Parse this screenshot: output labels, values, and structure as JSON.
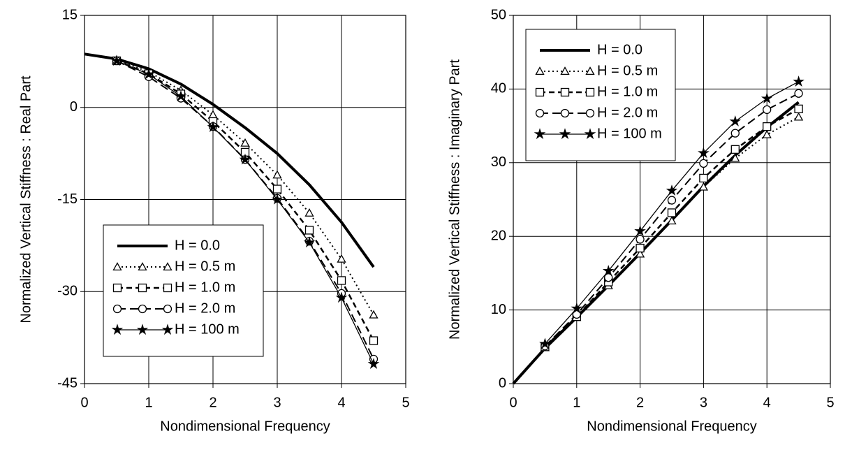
{
  "chart_data": [
    {
      "type": "line",
      "x_label": "Nondimensional Frequency",
      "y_label": "Normalized Vertical Stiffness : Real Part",
      "x": [
        0,
        0.5,
        1,
        1.5,
        2,
        2.5,
        3,
        3.5,
        4,
        4.5
      ],
      "xlim": [
        0,
        5
      ],
      "xticks": [
        0,
        1,
        2,
        3,
        4,
        5
      ],
      "ylim": [
        -45,
        15
      ],
      "yticks": [
        -45,
        -30,
        -15,
        0,
        15
      ],
      "grid": true,
      "legend": "lower left",
      "series": [
        {
          "name": "H = 0.0",
          "color": "#000000",
          "line_style": "thick",
          "marker": "none",
          "values": [
            8.7,
            7.9,
            6.3,
            3.8,
            0.5,
            -3.3,
            -7.5,
            -12.6,
            -18.7,
            -26
          ]
        },
        {
          "name": "H = 0.5 m",
          "color": "#000000",
          "line_style": "dotted",
          "marker": "triangle",
          "values": [
            null,
            7.7,
            5.8,
            2.8,
            -1.2,
            -5.8,
            -11,
            -17.2,
            -24.7,
            -33.8
          ]
        },
        {
          "name": "H = 1.0 m",
          "color": "#000000",
          "line_style": "dashed",
          "marker": "square",
          "values": [
            null,
            7.6,
            5.5,
            2.2,
            -2.3,
            -7.3,
            -13.3,
            -20,
            -28.2,
            -38
          ]
        },
        {
          "name": "H = 2.0 m",
          "color": "#000000",
          "line_style": "longdash",
          "marker": "circle",
          "values": [
            null,
            7.6,
            5.0,
            1.5,
            -3.1,
            -8.5,
            -14.8,
            -21.8,
            -30.3,
            -41
          ]
        },
        {
          "name": "H = 100 m",
          "color": "#000000",
          "line_style": "thin",
          "marker": "star",
          "values": [
            null,
            7.6,
            5.4,
            1.8,
            -3.2,
            -8.5,
            -15,
            -22,
            -31,
            -41.8
          ]
        }
      ]
    },
    {
      "type": "line",
      "x_label": "Nondimensional Frequency",
      "y_label": "Normalized Vertical Stiffness : Imaginary Part",
      "x": [
        0,
        0.5,
        1,
        1.5,
        2,
        2.5,
        3,
        3.5,
        4,
        4.5
      ],
      "xlim": [
        0,
        5
      ],
      "xticks": [
        0,
        1,
        2,
        3,
        4,
        5
      ],
      "ylim": [
        0,
        50
      ],
      "yticks": [
        0,
        10,
        20,
        30,
        40,
        50
      ],
      "grid": true,
      "legend": "upper left",
      "series": [
        {
          "name": "H = 0.0",
          "color": "#000000",
          "line_style": "thick",
          "marker": "none",
          "values": [
            0,
            4.8,
            9.0,
            13.3,
            17.7,
            22.2,
            26.8,
            31,
            34.8,
            38.2
          ]
        },
        {
          "name": "H = 0.5 m",
          "color": "#000000",
          "line_style": "dotted",
          "marker": "triangle",
          "values": [
            null,
            4.9,
            9.0,
            13.3,
            17.6,
            22.1,
            26.7,
            30.6,
            33.8,
            36.2
          ]
        },
        {
          "name": "H = 1.0 m",
          "color": "#000000",
          "line_style": "dashed",
          "marker": "square",
          "values": [
            null,
            5.0,
            9.1,
            13.8,
            18.4,
            23.2,
            27.9,
            31.8,
            34.9,
            37.3
          ]
        },
        {
          "name": "H = 2.0 m",
          "color": "#000000",
          "line_style": "longdash",
          "marker": "circle",
          "values": [
            null,
            5.1,
            9.4,
            14.4,
            19.6,
            24.9,
            29.9,
            34.0,
            37.2,
            39.4
          ]
        },
        {
          "name": "H = 100 m",
          "color": "#000000",
          "line_style": "thin",
          "marker": "star",
          "values": [
            null,
            5.4,
            10.2,
            15.3,
            20.7,
            26.2,
            31.3,
            35.6,
            38.7,
            41.0
          ]
        }
      ]
    }
  ]
}
